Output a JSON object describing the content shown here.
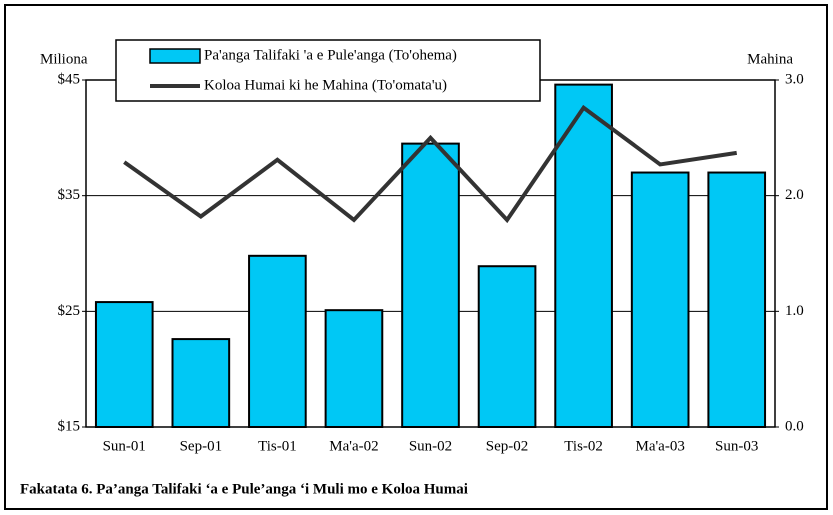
{
  "chart_data": {
    "type": "bar-line",
    "caption": "Fakatata 6.   Pa’anga Talifaki ‘a e Pule’anga ‘i Muli mo e Koloa Humai",
    "y_label": "Miliona",
    "y2_label": "Mahina",
    "categories": [
      "Sun-01",
      "Sep-01",
      "Tis-01",
      "Ma'a-02",
      "Sun-02",
      "Sep-02",
      "Tis-02",
      "Ma'a-03",
      "Sun-03"
    ],
    "series": [
      {
        "name": "Pa'anga Talifaki 'a e Pule'anga (To'ohema)",
        "type": "bar",
        "color": "#00c8f5",
        "values": [
          25.8,
          22.6,
          29.8,
          25.1,
          39.5,
          28.9,
          44.6,
          37.0,
          37.0
        ]
      },
      {
        "name": "Koloa Humai ki he Mahina (To'omata'u)",
        "type": "line",
        "axis": "y2",
        "color": "#333333",
        "values": [
          2.29,
          1.82,
          2.31,
          1.79,
          2.5,
          1.79,
          2.76,
          2.27,
          2.37
        ]
      }
    ],
    "ylim": [
      15,
      45
    ],
    "yticks": [
      {
        "value": 15,
        "label": "$15"
      },
      {
        "value": 25,
        "label": "$25"
      },
      {
        "value": 35,
        "label": "$35"
      },
      {
        "value": 45,
        "label": "$45"
      }
    ],
    "y2lim": [
      0,
      3
    ],
    "y2ticks": [
      {
        "value": 0,
        "label": "0.0"
      },
      {
        "value": 1,
        "label": "1.0"
      },
      {
        "value": 2,
        "label": "2.0"
      },
      {
        "value": 3,
        "label": "3.0"
      }
    ],
    "grid": true
  }
}
